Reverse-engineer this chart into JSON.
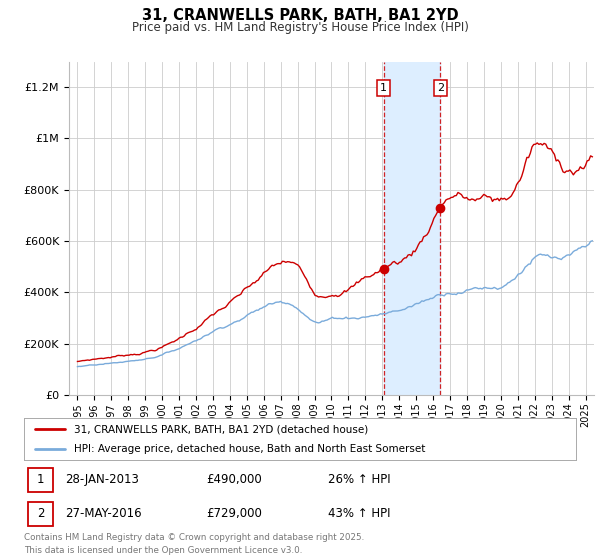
{
  "title": "31, CRANWELLS PARK, BATH, BA1 2YD",
  "subtitle": "Price paid vs. HM Land Registry's House Price Index (HPI)",
  "line1_label": "31, CRANWELLS PARK, BATH, BA1 2YD (detached house)",
  "line2_label": "HPI: Average price, detached house, Bath and North East Somerset",
  "line1_color": "#cc0000",
  "line2_color": "#7aabdb",
  "purchase1_date": 2013.08,
  "purchase1_price": 490000,
  "purchase2_date": 2016.42,
  "purchase2_price": 729000,
  "annotation1_date": "28-JAN-2013",
  "annotation1_price": "£490,000",
  "annotation1_hpi": "26% ↑ HPI",
  "annotation2_date": "27-MAY-2016",
  "annotation2_price": "£729,000",
  "annotation2_hpi": "43% ↑ HPI",
  "ylim": [
    0,
    1300000
  ],
  "xlim_start": 1994.5,
  "xlim_end": 2025.5,
  "ytick_labels": [
    "£0",
    "£200K",
    "£400K",
    "£600K",
    "£800K",
    "£1M",
    "£1.2M"
  ],
  "ytick_values": [
    0,
    200000,
    400000,
    600000,
    800000,
    1000000,
    1200000
  ],
  "xtick_years": [
    1995,
    1996,
    1997,
    1998,
    1999,
    2000,
    2001,
    2002,
    2003,
    2004,
    2005,
    2006,
    2007,
    2008,
    2009,
    2010,
    2011,
    2012,
    2013,
    2014,
    2015,
    2016,
    2017,
    2018,
    2019,
    2020,
    2021,
    2022,
    2023,
    2024,
    2025
  ],
  "bg_color": "#ffffff",
  "grid_color": "#cccccc",
  "shaded_color": "#ddeeff",
  "dashed_color": "#cc0000",
  "footer_text": "Contains HM Land Registry data © Crown copyright and database right 2025.\nThis data is licensed under the Open Government Licence v3.0."
}
